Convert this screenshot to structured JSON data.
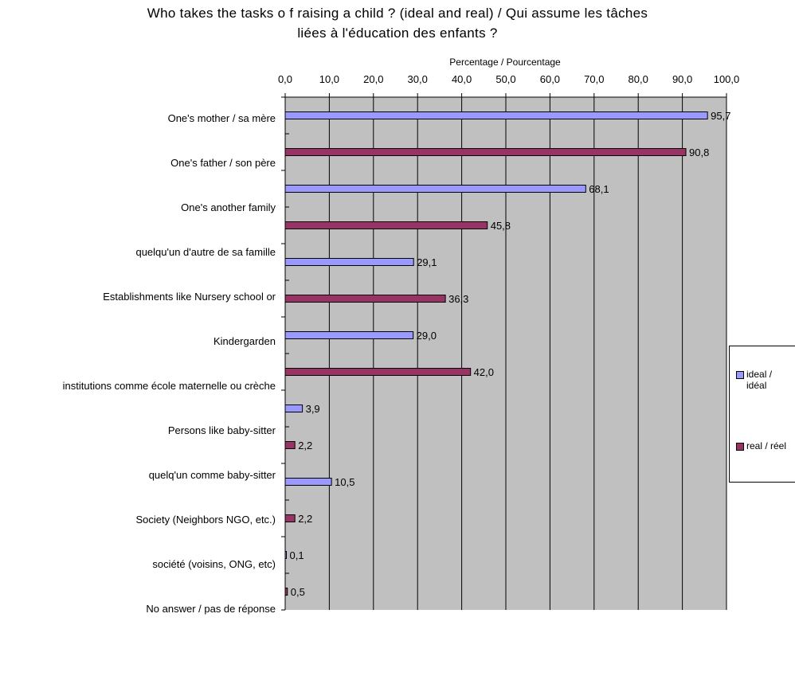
{
  "chart_data": {
    "type": "bar",
    "orientation": "horizontal",
    "title": "Who takes the tasks of raising a child ? (ideal and real) / Qui assume les tâches liées à l'éducation des enfants ?",
    "title_lines": [
      "Who takes the tasks o   f raising a child ? (ideal and real) / Qui assume les tâches",
      "liées à l'éducation des enfants ?"
    ],
    "xlabel": "Percentage / Pourcentage",
    "xlim": [
      0,
      100
    ],
    "x_ticks": [
      "0,0",
      "10,0",
      "20,0",
      "30,0",
      "40,0",
      "50,0",
      "60,0",
      "70,0",
      "80,0",
      "90,0",
      "100,0"
    ],
    "category_labels": [
      "One's mother / sa mère",
      "One's father / son père",
      "One's another family",
      "quelqu'un d'autre de sa famille",
      "Establishments like Nursery school or",
      "Kindergarden",
      "institutions comme école maternelle ou crèche",
      "Persons like baby-sitter",
      "quelq'un comme baby-sitter",
      "Society (Neighbors NGO, etc.)",
      "société (voisins, ONG, etc)",
      "No answer / pas de réponse"
    ],
    "series": [
      {
        "name": "ideal / idéal",
        "color": "#9999FF",
        "values": [
          95.7,
          68.1,
          29.1,
          29.0,
          3.9,
          10.5,
          0.1
        ],
        "labels": [
          "95,7",
          "68,1",
          "29,1",
          "29,0",
          "3,9",
          "10,5",
          "0,1"
        ]
      },
      {
        "name": "real / réel",
        "color": "#993366",
        "values": [
          90.8,
          45.8,
          36.3,
          42.0,
          2.2,
          2.2,
          0.5
        ],
        "labels": [
          "90,8",
          "45,8",
          "36,3",
          "42,0",
          "2,2",
          "2,2",
          "0,5"
        ]
      }
    ],
    "legend_lines": [
      [
        "ideal /",
        "idéal"
      ],
      [
        "real / réel"
      ]
    ],
    "plot_background": "#C0C0C0",
    "gridlines": true,
    "legend_position": "right"
  }
}
